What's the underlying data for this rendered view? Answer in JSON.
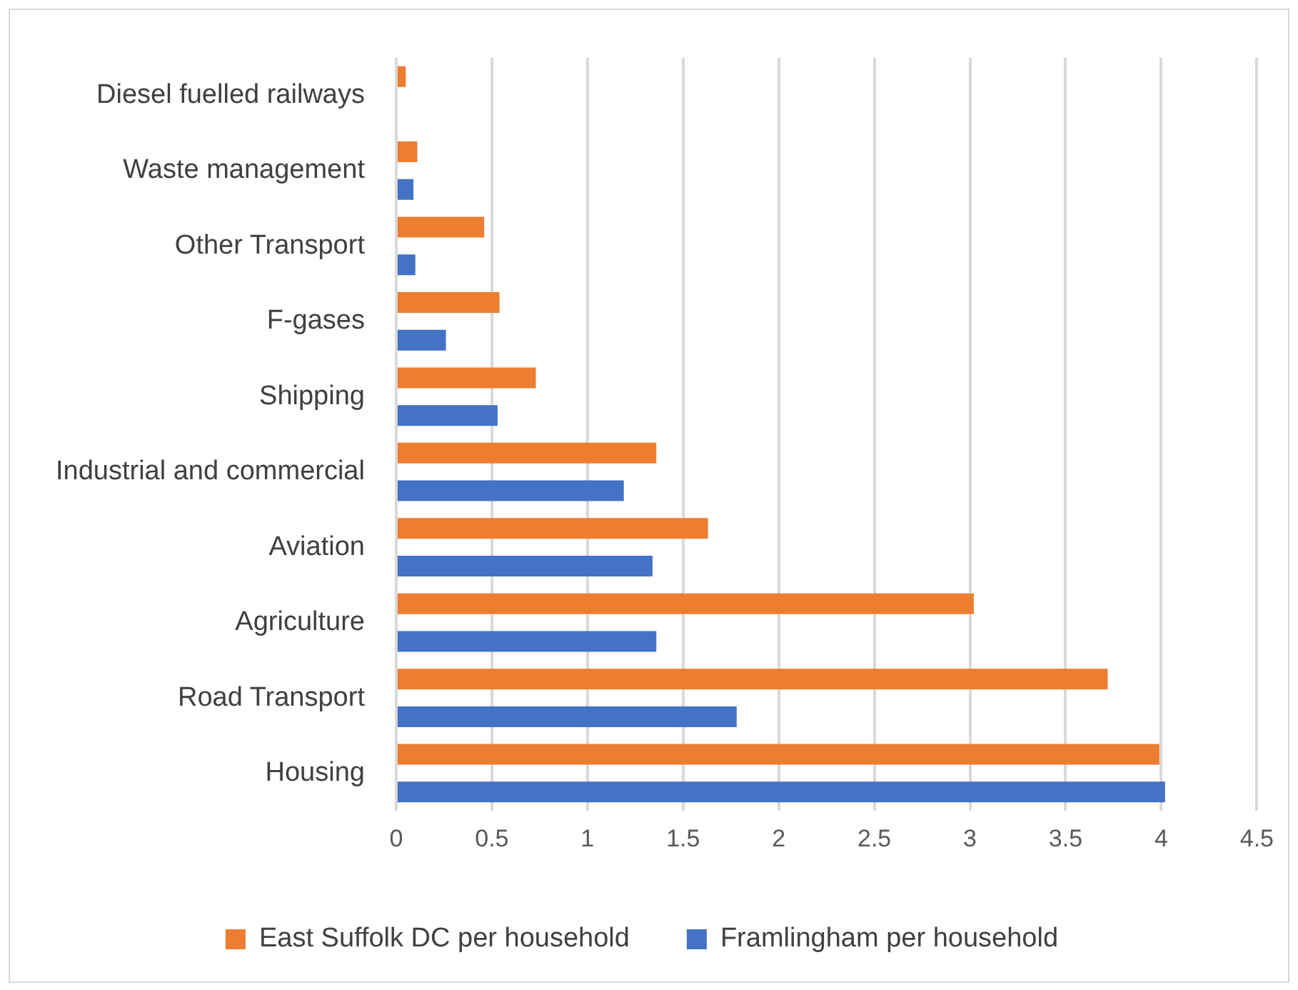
{
  "chart_data": {
    "type": "bar",
    "orientation": "horizontal",
    "categories": [
      "Diesel fuelled railways",
      "Waste management",
      "Other Transport",
      "F-gases",
      "Shipping",
      "Industrial and commercial",
      "Aviation",
      "Agriculture",
      "Road Transport",
      "Housing"
    ],
    "series": [
      {
        "name": "East Suffolk DC per household",
        "color": "#ed7d31",
        "values": [
          0.05,
          0.11,
          0.46,
          0.54,
          0.73,
          1.36,
          1.63,
          3.02,
          3.72,
          3.99
        ]
      },
      {
        "name": "Framlingham per household",
        "color": "#4472c4",
        "values": [
          0,
          0.09,
          0.1,
          0.26,
          0.53,
          1.19,
          1.34,
          1.36,
          1.78,
          4.02
        ]
      }
    ],
    "xlim": [
      0,
      4.5
    ],
    "xticks": [
      0,
      0.5,
      1,
      1.5,
      2,
      2.5,
      3,
      3.5,
      4,
      4.5
    ],
    "grid": "x",
    "legend": "bottom"
  }
}
